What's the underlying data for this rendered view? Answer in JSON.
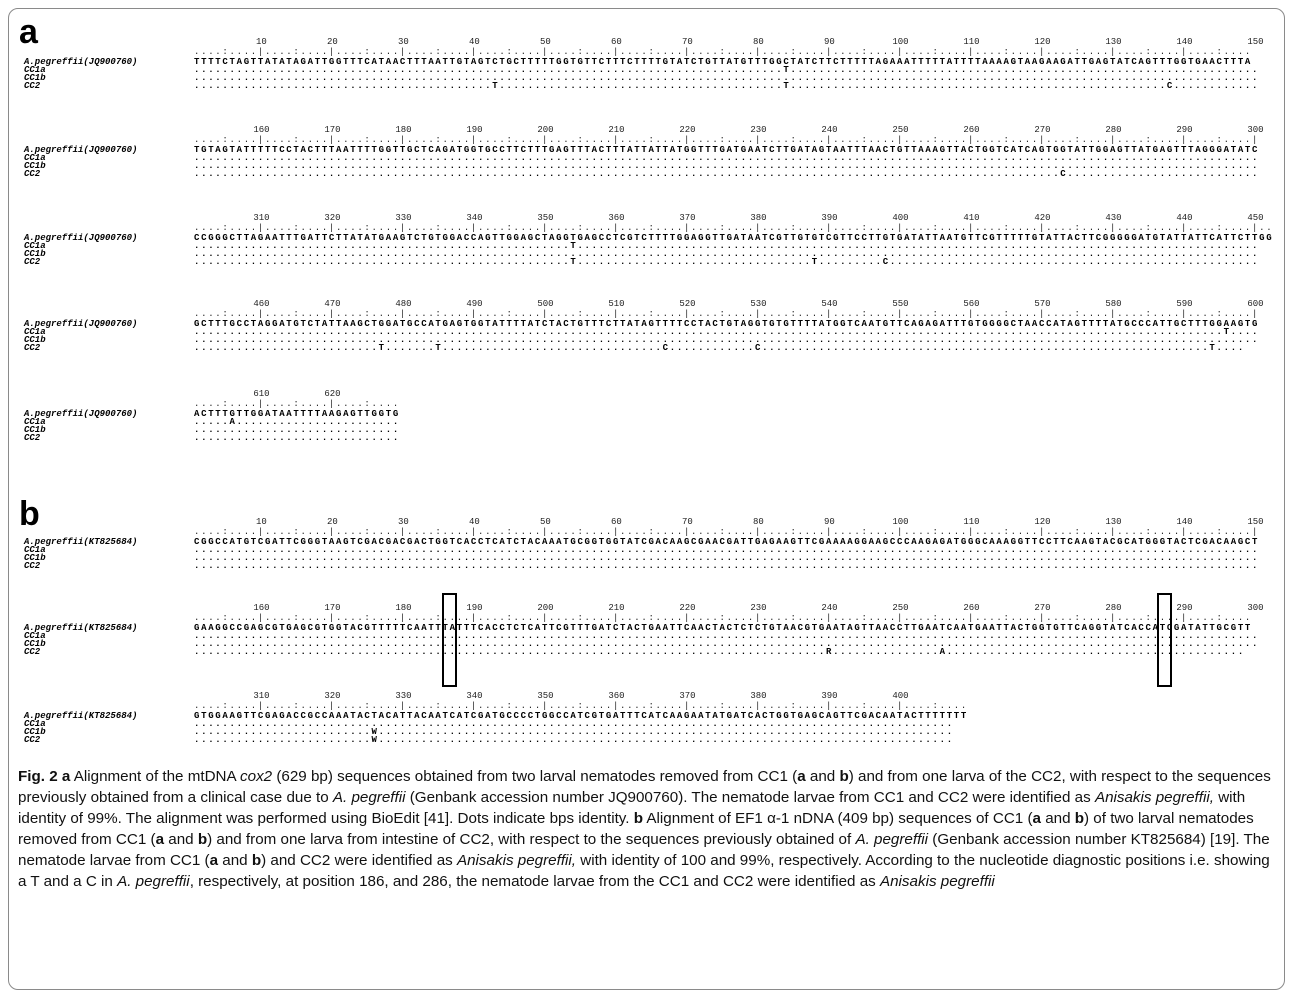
{
  "panel_a": {
    "letter": "a",
    "ruler_numbers": [
      "10",
      "20",
      "30",
      "40",
      "50",
      "60",
      "70",
      "80",
      "90",
      "100",
      "110",
      "120",
      "130",
      "140",
      "150"
    ],
    "blocks": [
      {
        "ruler": [
          "10",
          "20",
          "30",
          "40",
          "50",
          "60",
          "70",
          "80",
          "90",
          "100",
          "110",
          "120",
          "130",
          "140",
          "150"
        ],
        "rows": [
          {
            "label": "A.pegreffii(JQ900760)",
            "seq": "TTTTCTAGTTATATAGATTGGTTTCATAACTTTAATTGTAGTCTGCTTTTTGGTGTTCTTTCTTTTGTATCTGTTATGTTTGGCTATCTTCTTTTTAGAAATTTTTATTTTAAAAGTAAGAAGATTGAGTATCAGTTTGGTGAACTTTA"
          },
          {
            "label": "CC1a",
            "seq": "...................................................................................T.................................................................."
          },
          {
            "label": "CC1b",
            "seq": "......................................................................................................................................................"
          },
          {
            "label": "CC2",
            "seq": "..........................................T........................................T.....................................................C............"
          }
        ]
      },
      {
        "ruler": [
          "160",
          "170",
          "180",
          "190",
          "200",
          "210",
          "220",
          "230",
          "240",
          "250",
          "260",
          "270",
          "280",
          "290",
          "300"
        ],
        "rows": [
          {
            "label": "A.pegreffii(JQ900760)",
            "seq": "TGTAGTATTTTTCCTACTTTAATTTTGGTTGCTCAGATGGTGCCTTCTTTGAGTTTACTTTATTATTATGGTTTGATGAATCTTGATAGTAATTTAACTGTTAAAGTTACTGGTCATCAGTGGTATTGGAGTTATGAGTTTAGGGATATC"
          },
          {
            "label": "CC1a",
            "seq": "......................................................................................................................................................"
          },
          {
            "label": "CC1b",
            "seq": "......................................................................................................................................................"
          },
          {
            "label": "CC2",
            "seq": "..........................................................................................................................C..........................."
          }
        ]
      },
      {
        "ruler": [
          "310",
          "320",
          "330",
          "340",
          "350",
          "360",
          "370",
          "380",
          "390",
          "400",
          "410",
          "420",
          "430",
          "440",
          "450"
        ],
        "rows": [
          {
            "label": "A.pegreffii(JQ900760)",
            "seq": "CCGGGCTTAGAATTTGATTCTTATATGAAGTCTGTGGACCAGTTGGAGCTAGGTGAGCCTCGTCTTTTGGAGGTTGATAATCGTTGTGTCGTTCCTTGTGATATTAATGTTCGTTTTTGTATTACTTCGGGGGATGTATTATTCATTCTTGG"
          },
          {
            "label": "CC1a",
            "seq": ".....................................................T................................................................................................"
          },
          {
            "label": "CC1b",
            "seq": "......................................................................................................................................................"
          },
          {
            "label": "CC2",
            "seq": ".....................................................T.................................T.........C...................................................."
          }
        ]
      },
      {
        "ruler": [
          "460",
          "470",
          "480",
          "490",
          "500",
          "510",
          "520",
          "530",
          "540",
          "550",
          "560",
          "570",
          "580",
          "590",
          "600"
        ],
        "rows": [
          {
            "label": "A.pegreffii(JQ900760)",
            "seq": "GCTTTGCCTAGGATGTCTATTAAGCTGGATGCCATGAGTGGTATTTTATCTACTGTTTCTTATAGTTTTCCTACTGTAGGTGTGTTTTATGGTCAATGTTCAGAGATTTGTGGGGCTAACCATAGTTTTATGCCCATTGCTTTGGAAGTG"
          },
          {
            "label": "CC1a",
            "seq": ".................................................................................................................................................T...."
          },
          {
            "label": "CC1b",
            "seq": "......................................................................................................................................................"
          },
          {
            "label": "CC2",
            "seq": "..........................T.......T...............................C............C...............................................................T...."
          }
        ]
      },
      {
        "ruler": [
          "610",
          "620"
        ],
        "rows": [
          {
            "label": "A.pegreffii(JQ900760)",
            "seq": "ACTTTGTTGGATAATTTTAAGAGTTGGTG"
          },
          {
            "label": "CC1a",
            "seq": ".....A......................."
          },
          {
            "label": "CC1b",
            "seq": "............................."
          },
          {
            "label": "CC2",
            "seq": "............................."
          }
        ]
      }
    ]
  },
  "panel_b": {
    "letter": "b",
    "blocks": [
      {
        "ruler": [
          "10",
          "20",
          "30",
          "40",
          "50",
          "60",
          "70",
          "80",
          "90",
          "100",
          "110",
          "120",
          "130",
          "140",
          "150"
        ],
        "rows": [
          {
            "label": "A.pegreffii(KT825684)",
            "seq": "CGGCCATGTCGATTCGGGTAAGTCGACGACGACTGGTCACCTCATCTACAAATGCGGTGGTATCGACAAGCGAACGATTGAGAAGTTCGAAAAGGAAGCCCAAGAGATGGGCAAAGGTTCCTTCAAGTACGCATGGGTACTCGACAAGCT"
          },
          {
            "label": "CC1a",
            "seq": "......................................................................................................................................................"
          },
          {
            "label": "CC1b",
            "seq": "......................................................................................................................................................"
          },
          {
            "label": "CC2",
            "seq": "......................................................................................................................................................"
          }
        ]
      },
      {
        "ruler": [
          "160",
          "170",
          "180",
          "190",
          "200",
          "210",
          "220",
          "230",
          "240",
          "250",
          "260",
          "270",
          "280",
          "290",
          "300"
        ],
        "rows": [
          {
            "label": "A.pegreffii(KT825684)",
            "seq": "GAAGGCCGAGCGTGAGCGTGGTACGTTTTTCAATTTATTTCACCTCTCATTCGTTTGATCTACTGAATTCAACTACTCTCTGTAACGTGAATAGTTAACCTTGAATCAATGAATTACTGGTGTTCAGGTATCACCATCGATATTGCGTT"
          },
          {
            "label": "CC1a",
            "seq": "......................................................................................................................................................"
          },
          {
            "label": "CC1b",
            "seq": "......................................................................................................................................................"
          },
          {
            "label": "CC2",
            "seq": ".........................................................................................R...............A.........................................."
          }
        ]
      },
      {
        "ruler": [
          "310",
          "320",
          "330",
          "340",
          "350",
          "360",
          "370",
          "380",
          "390",
          "400"
        ],
        "rows": [
          {
            "label": "A.pegreffii(KT825684)",
            "seq": "GTGGAAGTTCGAGACCGCCAAATACTACATTACAATCATCGATGCCCCTGGCCATCGTGATTTCATCAAGAATATGATCACTGGTGAGCAGTTCGACAATACTTTTTTT"
          },
          {
            "label": "CC1a",
            "seq": "..........................................................................................................."
          },
          {
            "label": "CC1b",
            "seq": ".........................W................................................................................."
          },
          {
            "label": "CC2",
            "seq": ".........................W................................................................................."
          }
        ]
      }
    ]
  },
  "caption": {
    "fig": "Fig. 2",
    "p1": " Alignment of the mtDNA ",
    "gene1": "cox2",
    "p2": " (629 bp) sequences obtained from two larval nematodes removed from CC1 (",
    "p3": " and ",
    "p4": ") and from one larva of the CC2, with respect to the sequences previously obtained from a clinical case due to ",
    "species_abbr": "A. pegreffii",
    "p5": " (Genbank accession number JQ900760). The nematode larvae from CC1 and CC2 were identified as ",
    "species_full": "Anisakis pegreffii,",
    "p6": " with identity of 99%. The alignment was performed using BioEdit [41]. Dots indicate bps identity. ",
    "p7": " Alignment of EF1 α-1 nDNA (409 bp) sequences of CC1 (",
    "p8": ") of two larval nematodes removed from CC1 (",
    "p9": ") and from one larva from intestine of CC2, with respect to the sequences previously obtained of ",
    "p10": " (Genbank accession number KT825684) [19]. The nematode larvae from CC1 (",
    "p11": ") and CC2 were identified as ",
    "p12": " with identity of 100 and 99%, respectively. According to the nucleotide diagnostic positions i.e. showing a T and a C in ",
    "p13": ", respectively, at position 186, and 286, the nematode larvae from the CC1 and CC2 were identified as ",
    "species_end": "Anisakis pegreffii",
    "a": "a",
    "b": "b"
  }
}
